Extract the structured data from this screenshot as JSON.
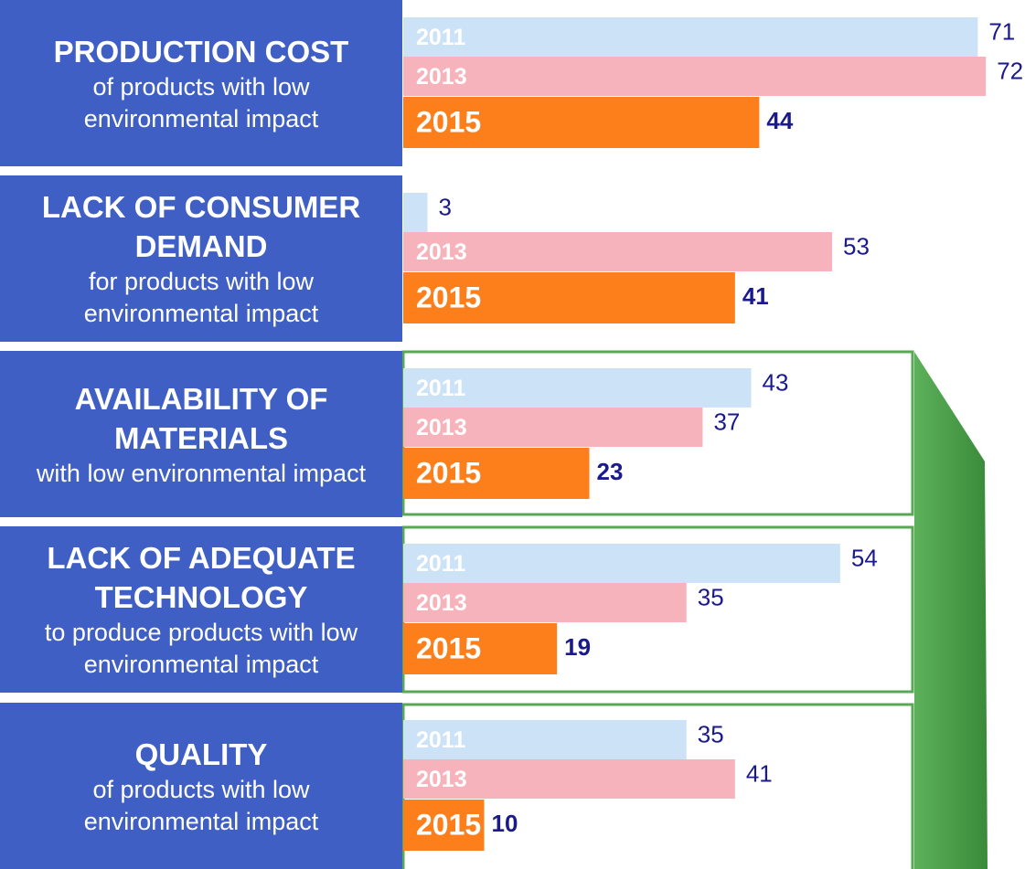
{
  "chart_data": {
    "type": "bar",
    "categories": [
      "PRODUCTION COST",
      "LACK OF CONSUMER DEMAND",
      "AVAILABILITY OF MATERIALS",
      "LACK OF ADEQUATE TECHNOLOGY",
      "QUALITY"
    ],
    "subtitles": [
      "of products with low environmental impact",
      "for products with low environmental impact",
      "with low environmental impact",
      "to produce products with low environmental impact",
      "of products with low environmental impact"
    ],
    "series": [
      {
        "name": "2011",
        "color": "#cce3f7",
        "values": [
          71,
          3,
          43,
          54,
          35
        ]
      },
      {
        "name": "2013",
        "color": "#f7b3bb",
        "values": [
          72,
          53,
          37,
          35,
          41
        ]
      },
      {
        "name": "2015",
        "color": "#fd7f1b",
        "values": [
          44,
          41,
          23,
          19,
          10
        ]
      }
    ]
  }
}
